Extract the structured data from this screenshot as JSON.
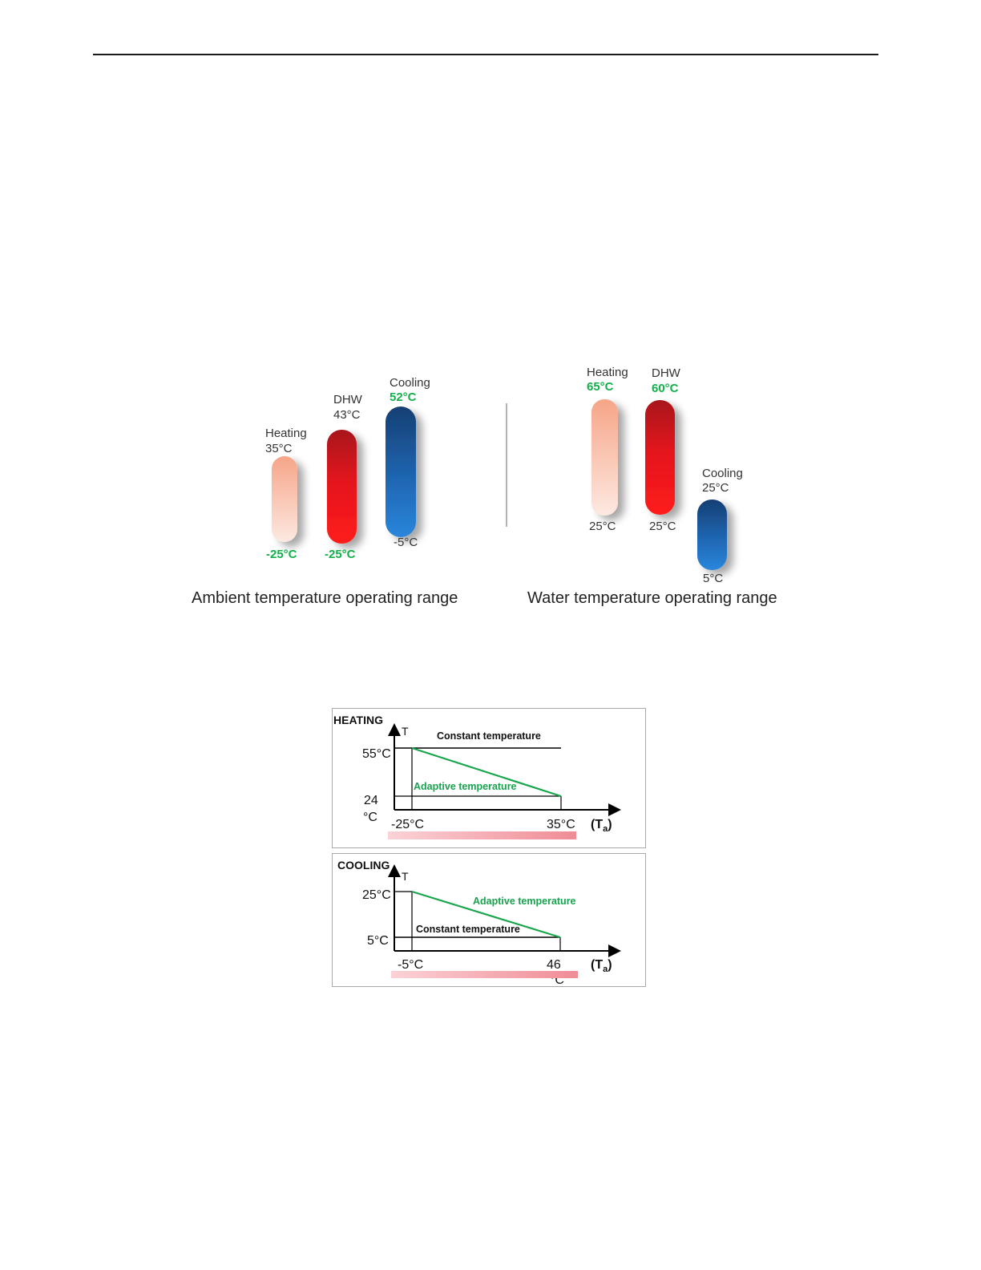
{
  "ambient": {
    "caption": "Ambient temperature operating range",
    "heating": {
      "name": "Heating",
      "max": "35°C",
      "min": "-25°C"
    },
    "dhw": {
      "name": "DHW",
      "max": "43°C",
      "min": "-25°C"
    },
    "cooling": {
      "name": "Cooling",
      "max": "52°C",
      "min": "-5°C"
    }
  },
  "water": {
    "caption": "Water temperature operating range",
    "heating": {
      "name": "Heating",
      "max": "65°C",
      "min": "25°C"
    },
    "dhw": {
      "name": "DHW",
      "max": "60°C",
      "min": "25°C"
    },
    "cooling": {
      "name": "Cooling",
      "max": "25°C",
      "min": "5°C"
    }
  },
  "heating_chart": {
    "title": "HEATING",
    "y_axis": "T",
    "y_high": "55°C",
    "y_low_a": "24",
    "y_low_b": "°C",
    "x_left": "-25°C",
    "x_right": "35°C",
    "x_unit_main": "(T",
    "x_unit_sub": "a",
    "x_unit_close": ")",
    "constant_label": "Constant temperature",
    "adaptive_label": "Adaptive temperature"
  },
  "cooling_chart": {
    "title": "COOLING",
    "y_axis": "T",
    "y_high": "25°C",
    "y_low": "5°C",
    "x_left": "-5°C",
    "x_right_a": "46",
    "x_right_b": "°C",
    "x_unit_main": "(T",
    "x_unit_sub": "a",
    "x_unit_close": ")",
    "constant_label": "Constant temperature",
    "adaptive_label": "Adaptive temperature"
  },
  "colors": {
    "heating_bar": "#f4a98e",
    "dhw_bar": "#e3131b",
    "cooling_bar": "#1f66b2",
    "green": "#12b04a"
  }
}
